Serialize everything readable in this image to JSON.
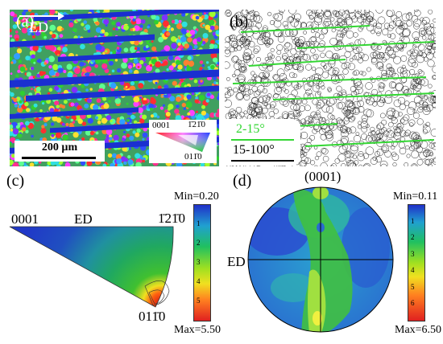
{
  "panels": {
    "a": {
      "label": "(a)",
      "direction": "ED",
      "scalebar": "200 µm",
      "ipf_key": {
        "top_left": "0001",
        "top_right": "1̄21̄0",
        "bottom_right": "011̄0"
      }
    },
    "b": {
      "label": "(b)",
      "legend": [
        {
          "text": "2-15°",
          "color": "#33d633"
        },
        {
          "text": "15-100°",
          "color": "#000000"
        }
      ]
    },
    "c": {
      "label": "(c)",
      "corner_labels": {
        "left": "0001",
        "middle": "ED",
        "right": "1̄21̄0",
        "bottom": "011̄0"
      },
      "colorbar": {
        "min": "Min=0.20",
        "max": "Max=5.50",
        "ticks": [
          "1",
          "2",
          "3",
          "4",
          "5"
        ]
      }
    },
    "d": {
      "label": "(d)",
      "pole": "(0001)",
      "axis": "ED",
      "colorbar": {
        "min": "Min=0.11",
        "max": "Max=6.50",
        "ticks": [
          "1",
          "2",
          "3",
          "4",
          "5",
          "6"
        ]
      }
    }
  },
  "colors": {
    "background": "#ffffff",
    "grain_band": "#1a2fd0",
    "low_angle": "#33d633"
  }
}
